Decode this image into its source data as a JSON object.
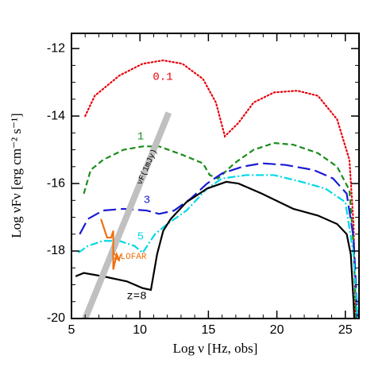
{
  "chart_data": {
    "type": "line",
    "xlabel": "Log ν [Hz, obs]",
    "ylabel": "Log νFν [erg cm⁻² s⁻¹]",
    "xlim": [
      5,
      26
    ],
    "ylim": [
      -20,
      -11.55
    ],
    "xticks": [
      5,
      10,
      15,
      20,
      25
    ],
    "yticks": [
      -20,
      -18,
      -16,
      -14,
      -12
    ],
    "series": [
      {
        "name": "0.1",
        "color": "#e8000b",
        "linestyle": "dotted",
        "x": [
          6.0,
          6.7,
          8.5,
          10.2,
          11.7,
          13.1,
          14.6,
          15.55,
          16.2,
          17.2,
          18.3,
          19.8,
          21.5,
          23,
          24.4,
          25.3,
          25.6,
          25.75
        ],
        "values": [
          -14.0,
          -13.4,
          -12.8,
          -12.45,
          -12.35,
          -12.45,
          -12.9,
          -13.6,
          -14.6,
          -14.2,
          -13.6,
          -13.3,
          -13.25,
          -13.4,
          -14.1,
          -15.3,
          -17.2,
          -20
        ]
      },
      {
        "name": "1",
        "color": "#1a8c1a",
        "linestyle": "dashed",
        "x": [
          5.9,
          6.4,
          7.3,
          8.8,
          10.2,
          11.4,
          13.1,
          14.6,
          15.1,
          15.7,
          16.9,
          18.3,
          19.8,
          21.2,
          23,
          24.4,
          25.3,
          25.6,
          25.8
        ],
        "values": [
          -16.3,
          -15.6,
          -15.3,
          -15.0,
          -14.9,
          -14.9,
          -15.15,
          -15.4,
          -15.75,
          -15.85,
          -15.4,
          -15.0,
          -14.8,
          -14.85,
          -15.1,
          -15.5,
          -16.2,
          -17.85,
          -20
        ]
      },
      {
        "name": "3",
        "color": "#1a1ad6",
        "linestyle": "longdash",
        "x": [
          5.6,
          6.2,
          7.3,
          8.8,
          10.5,
          11.4,
          12.5,
          13.7,
          14.9,
          16.0,
          17.5,
          18.9,
          20.65,
          22.7,
          24.1,
          25.1,
          25.6,
          25.9
        ],
        "values": [
          -17.5,
          -17.05,
          -16.8,
          -16.75,
          -16.8,
          -16.9,
          -16.8,
          -16.45,
          -16.0,
          -15.7,
          -15.5,
          -15.4,
          -15.45,
          -15.6,
          -15.85,
          -16.3,
          -17.6,
          -20
        ]
      },
      {
        "name": "5",
        "color": "#00d8e8",
        "linestyle": "dashdot",
        "x": [
          5.5,
          6.2,
          7.3,
          8.5,
          9.6,
          10.2,
          11.1,
          12.0,
          13.4,
          14.9,
          16.0,
          17.75,
          19.8,
          21.8,
          23.55,
          25.0,
          25.6,
          25.9
        ],
        "values": [
          -18.05,
          -17.85,
          -17.7,
          -17.7,
          -17.85,
          -18.05,
          -17.5,
          -17.2,
          -16.8,
          -16.15,
          -15.85,
          -15.75,
          -15.75,
          -15.95,
          -16.15,
          -16.55,
          -18.1,
          -20
        ]
      },
      {
        "name": "z=8",
        "color": "#000000",
        "linestyle": "solid",
        "x": [
          5.3,
          5.9,
          7.3,
          9.05,
          10.2,
          10.8,
          11.25,
          11.7,
          12.25,
          13.4,
          14.9,
          16.3,
          17.2,
          18.9,
          21.2,
          23,
          24.4,
          25.1,
          25.4,
          25.6,
          25.65
        ],
        "values": [
          -18.75,
          -18.65,
          -18.75,
          -18.9,
          -19.1,
          -19.15,
          -18.1,
          -17.4,
          -17.05,
          -16.55,
          -16.15,
          -15.95,
          -16.0,
          -16.3,
          -16.75,
          -16.95,
          -17.2,
          -17.5,
          -18.1,
          -19.5,
          -20
        ]
      },
      {
        "name": "νF(1mJy)",
        "color": "#c0c0c0",
        "linestyle": "thick",
        "x": [
          6.0,
          12.1
        ],
        "values": [
          -20,
          -13.9
        ]
      },
      {
        "name": "LOFAR",
        "color": "#f07010",
        "linestyle": "solid",
        "x": [
          7.15,
          7.6,
          7.9,
          8.05,
          8.05,
          8.3,
          8.5
        ],
        "values": [
          -17.05,
          -17.6,
          -17.6,
          -17.4,
          -18.55,
          -18.1,
          -18.3
        ]
      }
    ]
  }
}
